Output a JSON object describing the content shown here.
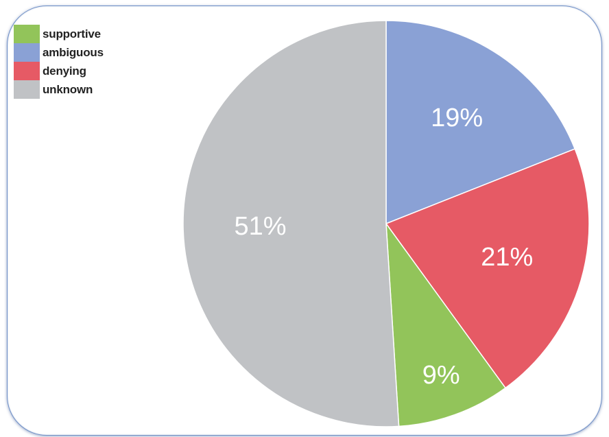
{
  "chart_data": {
    "type": "pie",
    "title": "",
    "start_angle_deg": 0,
    "direction": "clockwise",
    "slices": [
      {
        "name": "ambiguous",
        "value": 19,
        "label": "19%",
        "color": "#8aa1d5"
      },
      {
        "name": "denying",
        "value": 21,
        "label": "21%",
        "color": "#e65a65"
      },
      {
        "name": "supportive",
        "value": 9,
        "label": "9%",
        "color": "#92c45a"
      },
      {
        "name": "unknown",
        "value": 51,
        "label": "51%",
        "color": "#c0c2c5"
      }
    ],
    "legend": {
      "placement": "top-left",
      "entries": [
        {
          "name": "supportive",
          "color": "#92c45a"
        },
        {
          "name": "ambiguous",
          "color": "#8aa1d5"
        },
        {
          "name": "denying",
          "color": "#e65a65"
        },
        {
          "name": "unknown",
          "color": "#c0c2c5"
        }
      ]
    }
  }
}
